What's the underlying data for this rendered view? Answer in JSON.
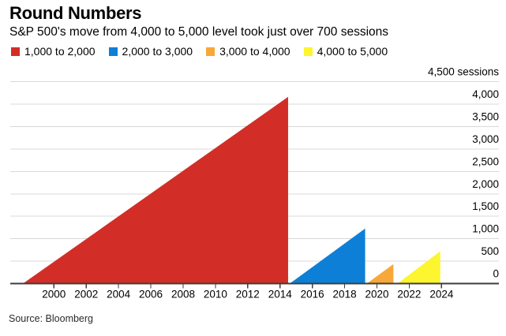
{
  "header": {
    "title": "Round Numbers",
    "subtitle": "S&P 500's move from 4,000 to 5,000 level took just over 700 sessions"
  },
  "source": "Source: Bloomberg",
  "chart_data": {
    "type": "area",
    "title": "Round Numbers",
    "subtitle": "S&P 500's move from 4,000 to 5,000 level took just over 700 sessions",
    "ylabel": "sessions",
    "legend_position": "top",
    "grid": true,
    "ylim": [
      0,
      4500
    ],
    "x_range_years": [
      1997.3,
      2027.6
    ],
    "y_ticks": [
      {
        "value": 0,
        "label": "0"
      },
      {
        "value": 500,
        "label": "500"
      },
      {
        "value": 1000,
        "label": "1,000"
      },
      {
        "value": 1500,
        "label": "1,500"
      },
      {
        "value": 2000,
        "label": "2,000"
      },
      {
        "value": 2500,
        "label": "2,500"
      },
      {
        "value": 3000,
        "label": "3,000"
      },
      {
        "value": 3500,
        "label": "3,500"
      },
      {
        "value": 4000,
        "label": "4,000"
      },
      {
        "value": 4500,
        "label": "4,500 sessions"
      }
    ],
    "x_ticks": [
      {
        "value": 2000,
        "label": "2000"
      },
      {
        "value": 2002,
        "label": "2002"
      },
      {
        "value": 2004,
        "label": "2004"
      },
      {
        "value": 2006,
        "label": "2006"
      },
      {
        "value": 2008,
        "label": "2008"
      },
      {
        "value": 2010,
        "label": "2010"
      },
      {
        "value": 2012,
        "label": "2012"
      },
      {
        "value": 2014,
        "label": "2014"
      },
      {
        "value": 2016,
        "label": "2016"
      },
      {
        "value": 2018,
        "label": "2018"
      },
      {
        "value": 2020,
        "label": "2020"
      },
      {
        "value": 2022,
        "label": "2022"
      },
      {
        "value": 2024,
        "label": "2024"
      }
    ],
    "series": [
      {
        "name": "1,000 to 2,000",
        "color": "#d22e27",
        "start_year": 1998.1,
        "end_year": 2014.5,
        "sessions": 4163
      },
      {
        "name": "2,000 to 3,000",
        "color": "#0e7fd6",
        "start_year": 2014.62,
        "end_year": 2019.27,
        "sessions": 1227
      },
      {
        "name": "3,000 to 4,000",
        "color": "#f7a839",
        "start_year": 2019.39,
        "end_year": 2021.02,
        "sessions": 434
      },
      {
        "name": "4,000 to 5,000",
        "color": "#fdf52f",
        "start_year": 2021.29,
        "end_year": 2023.92,
        "sessions": 721
      }
    ]
  }
}
